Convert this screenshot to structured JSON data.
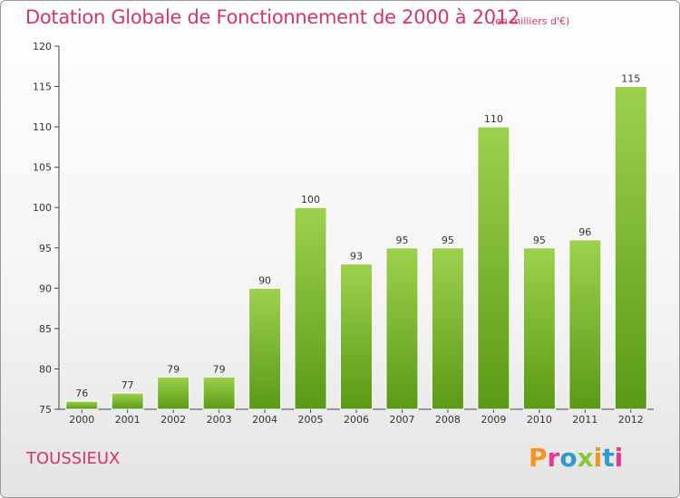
{
  "header": {
    "title": "Dotation Globale de Fonctionnement de 2000 à 2012",
    "unit_note": "(en milliers d'€)"
  },
  "footer": {
    "commune": "TOUSSIEUX",
    "brand": "Proxiti",
    "brand_colors": [
      "#f7941d",
      "#e63a8c",
      "#2e9ad0",
      "#8cc63f",
      "#f7941d",
      "#2e9ad0",
      "#e63a8c"
    ]
  },
  "colors": {
    "accent": "#d6336c",
    "bar_light": "#9dd14d",
    "bar_dark": "#5a9a16"
  },
  "chart_data": {
    "type": "bar",
    "title": "Dotation Globale de Fonctionnement de 2000 à 2012",
    "subtitle": "(en milliers d'€)",
    "categories": [
      "2000",
      "2001",
      "2002",
      "2003",
      "2004",
      "2005",
      "2006",
      "2007",
      "2008",
      "2009",
      "2010",
      "2011",
      "2012"
    ],
    "values": [
      76,
      77,
      79,
      79,
      90,
      100,
      93,
      95,
      95,
      110,
      95,
      96,
      115
    ],
    "ylim": [
      75,
      120
    ],
    "yticks": [
      75,
      80,
      85,
      90,
      95,
      100,
      105,
      110,
      115,
      120
    ],
    "xlabel": "",
    "ylabel": "",
    "grid": false,
    "legend": "none"
  }
}
